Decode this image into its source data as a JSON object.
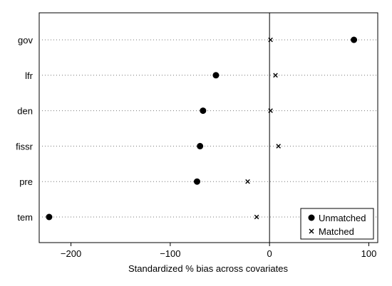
{
  "chart_data": {
    "type": "scatter",
    "title": "",
    "xlabel": "Standardized % bias across covariates",
    "ylabel": "",
    "xlim": [
      -232,
      109
    ],
    "xticks": [
      -200,
      -100,
      0,
      100
    ],
    "xtick_labels": [
      "−200",
      "−100",
      "0",
      "100"
    ],
    "reference_line_x": 0,
    "categories": [
      "gov",
      "lfr",
      "den",
      "fissr",
      "pre",
      "tem"
    ],
    "series": [
      {
        "name": "Unmatched",
        "marker": "circle",
        "values": [
          85,
          -54,
          -67,
          -70,
          -73,
          -222
        ]
      },
      {
        "name": "Matched",
        "marker": "x",
        "values": [
          1,
          6,
          1,
          9,
          -22,
          -13
        ]
      }
    ],
    "legend": {
      "placement": "bottom-right",
      "entries": [
        "Unmatched",
        "Matched"
      ]
    },
    "grid": "dotted horizontal per category",
    "colors": {
      "marker": "#000000",
      "gridline": "#777777",
      "background": "#ffffff"
    }
  }
}
